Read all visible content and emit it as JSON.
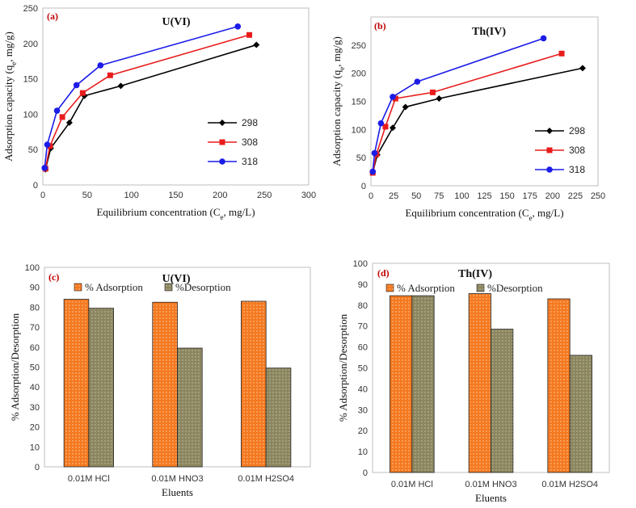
{
  "chart_data": [
    {
      "id": "a",
      "type": "line",
      "panel_label": "(a)",
      "title": "U(VI)",
      "xlabel": "Equilibrium concentration (C",
      "xlabel_sub": "e",
      "xlabel_tail": ", mg/L)",
      "ylabel": "Adsorption capacity (q",
      "ylabel_sub": "e",
      "ylabel_tail": ", mg/g)",
      "xlim": [
        0,
        300
      ],
      "ylim": [
        0,
        250
      ],
      "xticks": [
        0,
        50,
        100,
        150,
        200,
        250,
        300
      ],
      "yticks": [
        0,
        50,
        100,
        150,
        200,
        250
      ],
      "legend_position": "right",
      "series": [
        {
          "name": "298",
          "color": "#000000",
          "marker": "diamond",
          "x": [
            3,
            9,
            30,
            47,
            88,
            241
          ],
          "y": [
            22,
            52,
            88,
            126,
            140,
            198
          ]
        },
        {
          "name": "308",
          "color": "#e81c1c",
          "marker": "square",
          "x": [
            3,
            8,
            22,
            45,
            76,
            233
          ],
          "y": [
            23,
            55,
            96,
            130,
            155,
            212
          ]
        },
        {
          "name": "318",
          "color": "#1c1ce8",
          "marker": "circle",
          "x": [
            2,
            5,
            16,
            38,
            65,
            220
          ],
          "y": [
            24,
            57,
            105,
            141,
            169,
            224
          ]
        }
      ]
    },
    {
      "id": "b",
      "type": "line",
      "panel_label": "(b)",
      "title": "Th(IV)",
      "xlabel": "Equilibrium concentration (C",
      "xlabel_sub": "e",
      "xlabel_tail": ", mg/L)",
      "ylabel": "Adsorption capacity (q",
      "ylabel_sub": "e",
      "ylabel_tail": ", mg/g)",
      "xlim": [
        0,
        250
      ],
      "ylim": [
        0,
        300
      ],
      "xticks": [
        0,
        25,
        50,
        75,
        100,
        125,
        150,
        175,
        200,
        225,
        250
      ],
      "yticks": [
        0,
        50,
        100,
        150,
        200,
        250
      ],
      "legend_position": "right",
      "series": [
        {
          "name": "298",
          "color": "#000000",
          "marker": "diamond",
          "x": [
            2,
            7,
            24,
            38,
            75,
            233
          ],
          "y": [
            24,
            55,
            103,
            140,
            155,
            209
          ]
        },
        {
          "name": "308",
          "color": "#e81c1c",
          "marker": "square",
          "x": [
            2,
            6,
            16,
            27,
            68,
            210
          ],
          "y": [
            23,
            56,
            105,
            155,
            166,
            235
          ]
        },
        {
          "name": "318",
          "color": "#1c1ce8",
          "marker": "circle",
          "x": [
            2,
            4,
            11,
            24,
            51,
            190
          ],
          "y": [
            25,
            58,
            111,
            158,
            185,
            262
          ]
        }
      ]
    },
    {
      "id": "c",
      "type": "bar",
      "panel_label": "(c)",
      "title": "U(VI)",
      "xlabel": "Eluents",
      "ylabel": "% Adsorption/Desorption",
      "ylim": [
        0,
        100
      ],
      "yticks": [
        0,
        10,
        20,
        30,
        40,
        50,
        60,
        70,
        80,
        90,
        100
      ],
      "categories": [
        "0.01M HCl",
        "0.01M HNO3",
        "0.01M H2SO4"
      ],
      "legend_position": "top",
      "series": [
        {
          "name": "% Adsorption",
          "color": "#f47920",
          "values": [
            84,
            82.5,
            83
          ]
        },
        {
          "name": "%Desorption",
          "color": "#8b8660",
          "values": [
            79.5,
            59.5,
            49.5
          ]
        }
      ]
    },
    {
      "id": "d",
      "type": "bar",
      "panel_label": "(d)",
      "title": "Th(IV)",
      "xlabel": "Eluents",
      "ylabel": "% Adsorption/Desorption",
      "ylim": [
        0,
        100
      ],
      "yticks": [
        0,
        10,
        20,
        30,
        40,
        50,
        60,
        70,
        80,
        90,
        100
      ],
      "categories": [
        "0.01M HCl",
        "0.01M HNO3",
        "0.01M H2SO4"
      ],
      "legend_position": "top",
      "series": [
        {
          "name": "% Adsorption",
          "color": "#f47920",
          "values": [
            84.5,
            85.5,
            83
          ]
        },
        {
          "name": "%Desorption",
          "color": "#8b8660",
          "values": [
            84.5,
            68.5,
            56
          ]
        }
      ]
    }
  ]
}
